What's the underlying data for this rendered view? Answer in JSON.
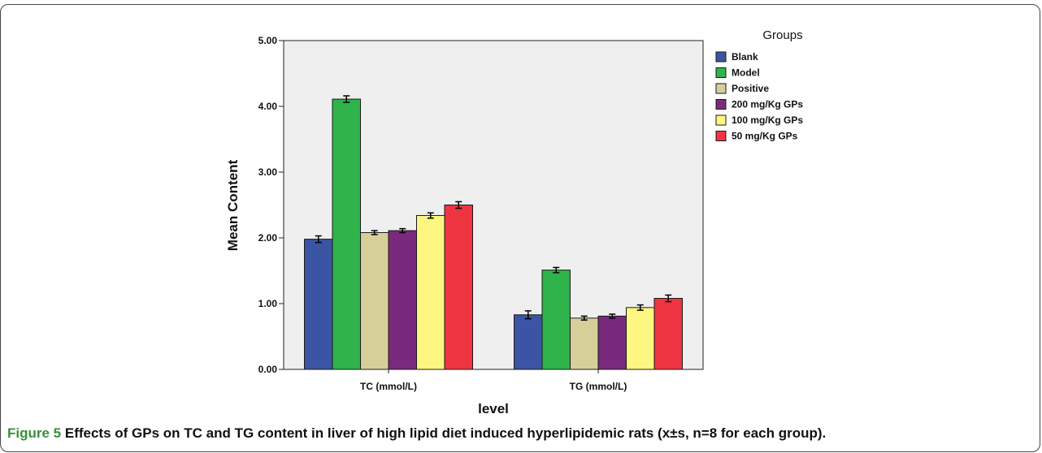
{
  "chart_data": {
    "type": "bar",
    "categories": [
      "TC (mmol/L)",
      "TG (mmol/L)"
    ],
    "xlabel": "level",
    "ylabel": "Mean Content",
    "ylim": [
      0,
      5
    ],
    "yticks": [
      "0.00",
      "1.00",
      "2.00",
      "3.00",
      "4.00",
      "5.00"
    ],
    "ytick_values": [
      0,
      1,
      2,
      3,
      4,
      5
    ],
    "legend_title": "Groups",
    "legend_position": "right",
    "error_bars": true,
    "background": "#efefef",
    "series": [
      {
        "name": "Blank",
        "color": "#3b54a4",
        "values": [
          1.98,
          0.83
        ],
        "errors": [
          0.05,
          0.06
        ]
      },
      {
        "name": "Model",
        "color": "#2fb34a",
        "values": [
          4.11,
          1.51
        ],
        "errors": [
          0.05,
          0.04
        ]
      },
      {
        "name": "Positive",
        "color": "#d6cf9a",
        "values": [
          2.08,
          0.78
        ],
        "errors": [
          0.03,
          0.03
        ]
      },
      {
        "name": "200 mg/Kg GPs",
        "color": "#7a2a7c",
        "values": [
          2.11,
          0.81
        ],
        "errors": [
          0.03,
          0.03
        ]
      },
      {
        "name": "100  mg/Kg GPs",
        "color": "#fdf680",
        "values": [
          2.34,
          0.94
        ],
        "errors": [
          0.04,
          0.04
        ]
      },
      {
        "name": "50  mg/Kg GPs",
        "color": "#ef3442",
        "values": [
          2.5,
          1.08
        ],
        "errors": [
          0.05,
          0.05
        ]
      }
    ]
  },
  "caption": {
    "label": "Figure 5",
    "text": "Effects of GPs on TC and TG content in liver of high lipid diet induced hyperlipidemic rats (x±s, n=8 for each group)."
  }
}
